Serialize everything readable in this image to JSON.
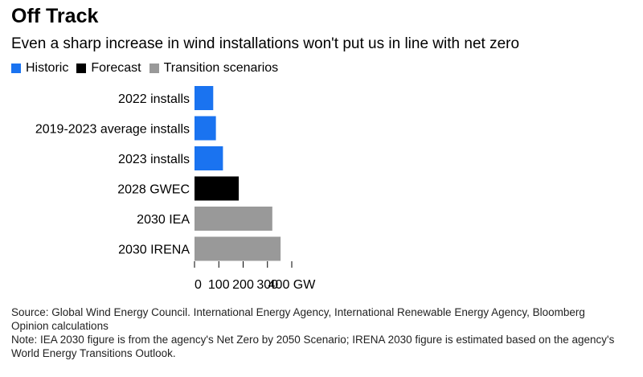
{
  "header": {
    "title": "Off Track",
    "subtitle": "Even a sharp increase in wind installations won't put us in line with net zero"
  },
  "legend": [
    {
      "label": "Historic",
      "color": "#1a73f0"
    },
    {
      "label": "Forecast",
      "color": "#000000"
    },
    {
      "label": "Transition scenarios",
      "color": "#999999"
    }
  ],
  "chart_data": {
    "type": "bar",
    "orientation": "horizontal",
    "title": "Off Track",
    "subtitle": "Even a sharp increase in wind installations won't put us in line with net zero",
    "categories": [
      "2022 installs",
      "2019-2023 average installs",
      "2023 installs",
      "2028 GWEC",
      "2030 IEA",
      "2030 IRENA"
    ],
    "values": [
      77,
      88,
      117,
      182,
      320,
      354
    ],
    "groups": [
      "Historic",
      "Historic",
      "Historic",
      "Forecast",
      "Transition scenarios",
      "Transition scenarios"
    ],
    "colors": [
      "#1a73f0",
      "#1a73f0",
      "#1a73f0",
      "#000000",
      "#999999",
      "#999999"
    ],
    "xlim": [
      0,
      400
    ],
    "ticks": [
      0,
      100,
      200,
      300,
      400
    ],
    "tick_labels": [
      "0",
      "100",
      "200",
      "300",
      "400 GW"
    ],
    "xlabel": "",
    "ylabel": "",
    "grid": false,
    "legend_position": "top-left"
  },
  "notes": {
    "source": "Source: Global Wind Energy Council. International Energy Agency, International Renewable Energy Agency, Bloomberg Opinion calculations",
    "note": "Note: IEA 2030 figure is from the agency's Net Zero by 2050 Scenario; IRENA 2030 figure is estimated based on the agency's World Energy Transitions Outlook."
  }
}
